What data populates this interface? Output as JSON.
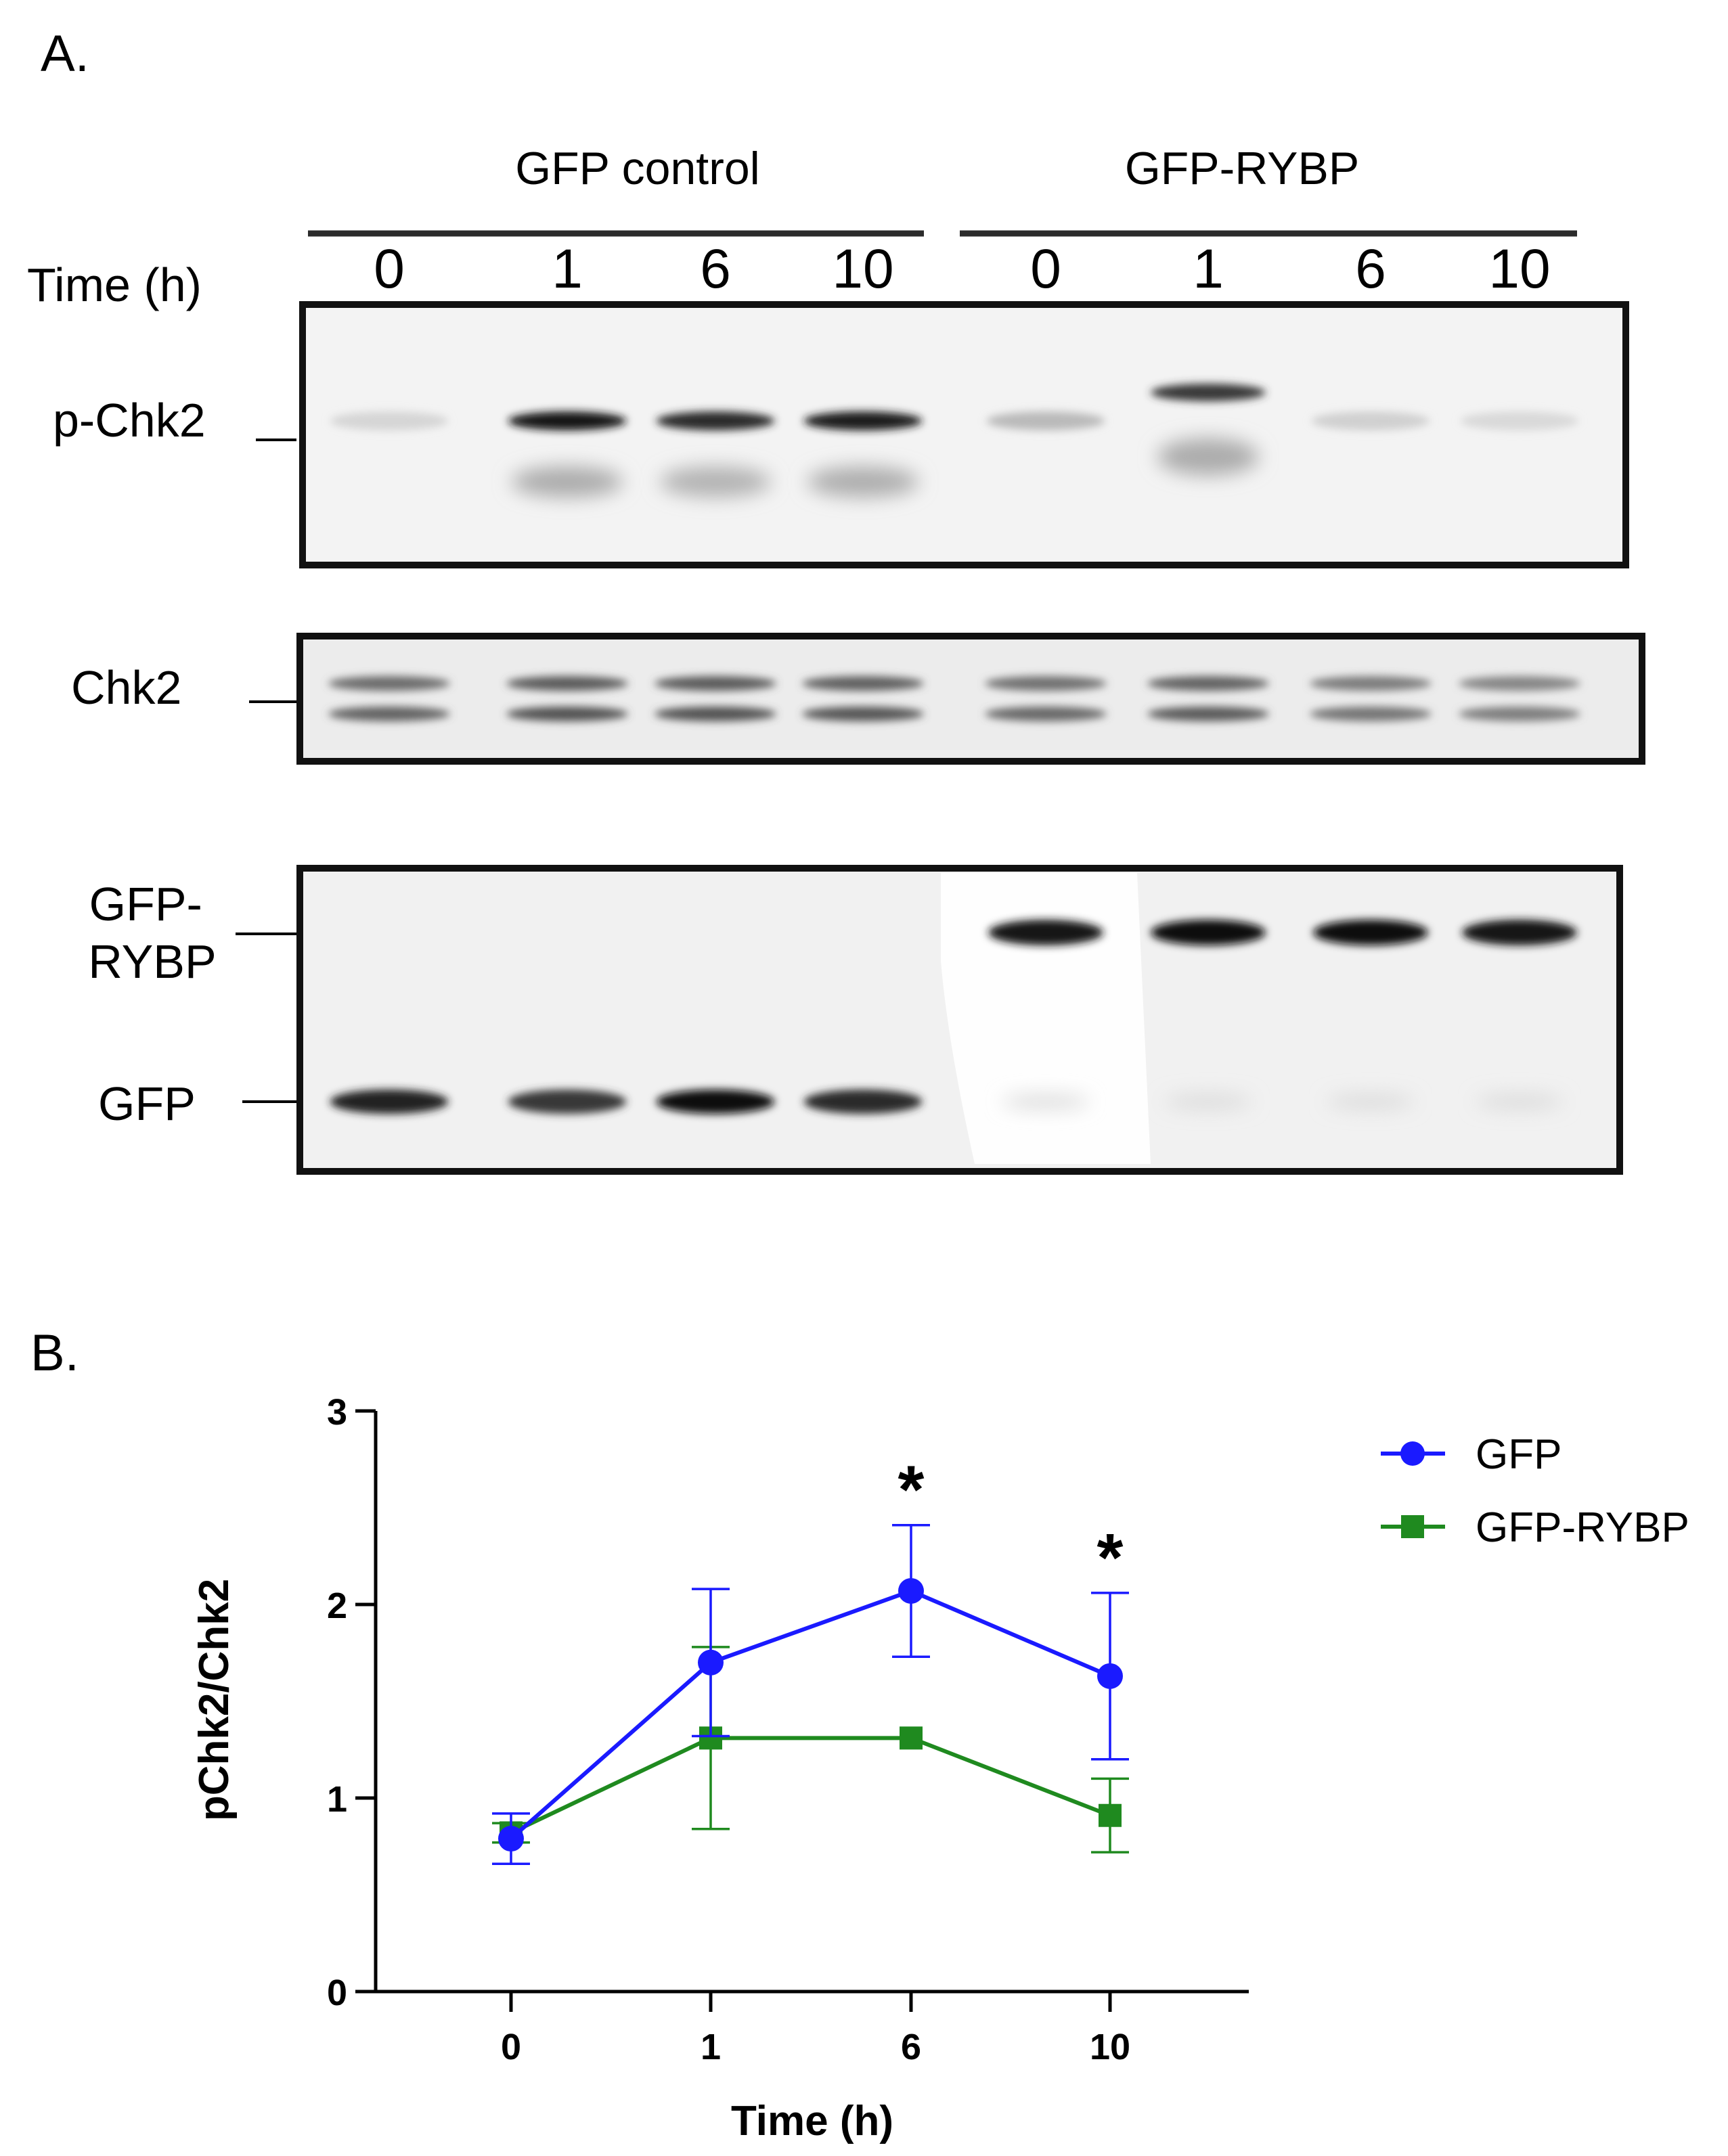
{
  "panel_a": {
    "label": "A.",
    "groups": [
      "GFP control",
      "GFP-RYBP"
    ],
    "time_label": "Time (h)",
    "lanes": [
      "0",
      "1",
      "6",
      "10",
      "0",
      "1",
      "6",
      "10"
    ],
    "blots": [
      {
        "label": "p-Chk2",
        "bands": [
          {
            "lane": 1,
            "intensity": 0.1,
            "shape": "single"
          },
          {
            "lane": 2,
            "intensity": 0.95,
            "shape": "single-smear"
          },
          {
            "lane": 3,
            "intensity": 0.85,
            "shape": "single-smear"
          },
          {
            "lane": 4,
            "intensity": 0.92,
            "shape": "single-smear"
          },
          {
            "lane": 5,
            "intensity": 0.22,
            "shape": "single"
          },
          {
            "lane": 6,
            "intensity": 0.8,
            "shape": "upper-smear"
          },
          {
            "lane": 7,
            "intensity": 0.12,
            "shape": "single"
          },
          {
            "lane": 8,
            "intensity": 0.08,
            "shape": "single"
          }
        ]
      },
      {
        "label": "Chk2",
        "bands": [
          {
            "lane": 1,
            "intensity": 0.75,
            "shape": "doublet"
          },
          {
            "lane": 2,
            "intensity": 0.85,
            "shape": "doublet"
          },
          {
            "lane": 3,
            "intensity": 0.85,
            "shape": "doublet"
          },
          {
            "lane": 4,
            "intensity": 0.82,
            "shape": "doublet"
          },
          {
            "lane": 5,
            "intensity": 0.72,
            "shape": "doublet"
          },
          {
            "lane": 6,
            "intensity": 0.8,
            "shape": "doublet"
          },
          {
            "lane": 7,
            "intensity": 0.65,
            "shape": "doublet"
          },
          {
            "lane": 8,
            "intensity": 0.6,
            "shape": "doublet"
          }
        ]
      },
      {
        "label": "GFP-\nRYBP",
        "label2": "GFP",
        "bands": [
          {
            "lane": 1,
            "intensity": 0.9,
            "shape": "low"
          },
          {
            "lane": 2,
            "intensity": 0.8,
            "shape": "low"
          },
          {
            "lane": 3,
            "intensity": 1.0,
            "shape": "low"
          },
          {
            "lane": 4,
            "intensity": 0.85,
            "shape": "low"
          },
          {
            "lane": 5,
            "intensity": 0.95,
            "shape": "high"
          },
          {
            "lane": 6,
            "intensity": 1.0,
            "shape": "high"
          },
          {
            "lane": 7,
            "intensity": 1.0,
            "shape": "high"
          },
          {
            "lane": 8,
            "intensity": 0.95,
            "shape": "high"
          }
        ]
      }
    ]
  },
  "panel_b": {
    "label": "B.",
    "significance_marker": "*"
  },
  "chart_data": {
    "type": "line",
    "categories": [
      "0",
      "1",
      "6",
      "10"
    ],
    "xlabel": "Time (h)",
    "ylabel": "pChk2/Chk2",
    "ylim": [
      0,
      3
    ],
    "yticks": [
      0,
      1,
      2,
      3
    ],
    "legend_position": "right",
    "series": [
      {
        "name": "GFP",
        "color": "#1a1aff",
        "marker": "circle",
        "values": [
          0.79,
          1.7,
          2.07,
          1.63
        ],
        "error": [
          0.13,
          0.38,
          0.34,
          0.43
        ]
      },
      {
        "name": "GFP-RYBP",
        "color": "#1f8a1f",
        "marker": "square",
        "values": [
          0.82,
          1.31,
          1.31,
          0.91
        ],
        "error": [
          0.05,
          0.47,
          0.0,
          0.19
        ]
      }
    ],
    "annotations": [
      {
        "category": "6",
        "text": "*"
      },
      {
        "category": "10",
        "text": "*"
      }
    ]
  }
}
